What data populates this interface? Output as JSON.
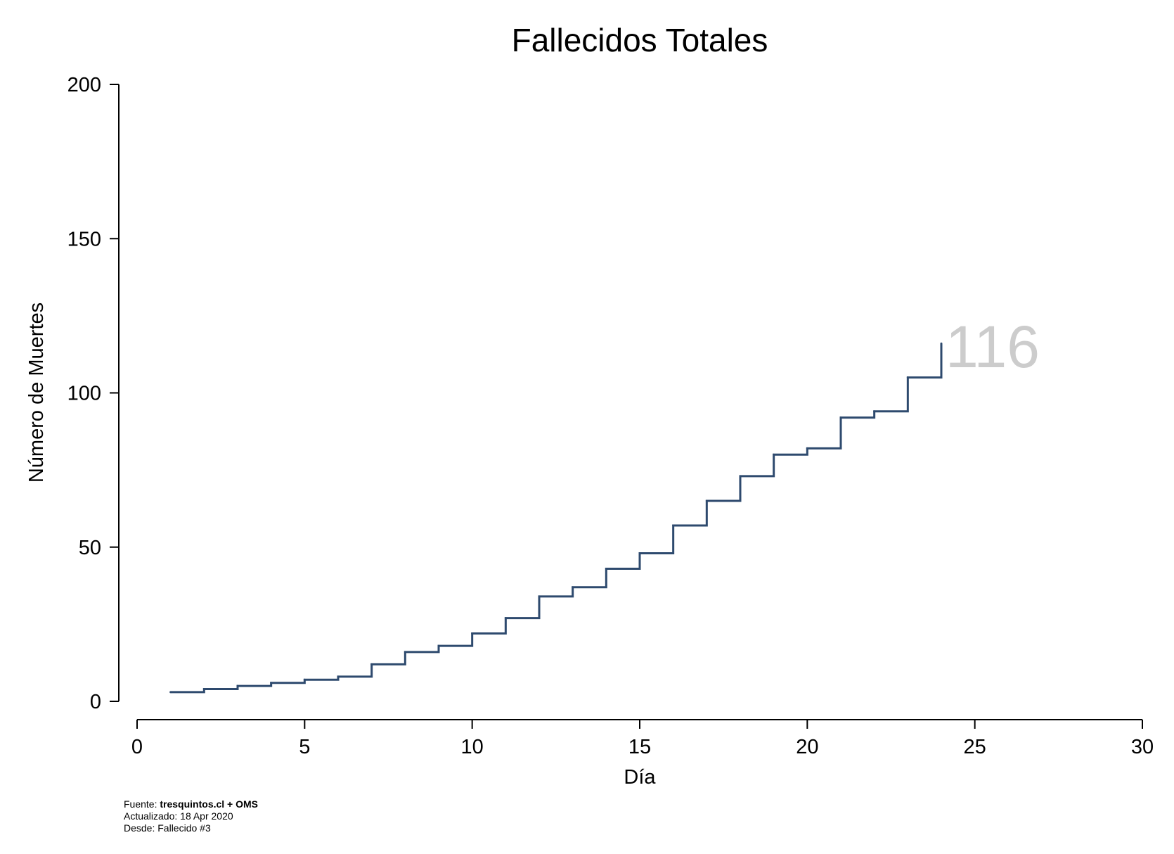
{
  "chart_data": {
    "type": "line",
    "step": true,
    "title": "Fallecidos Totales",
    "xlabel": "Día",
    "ylabel": "Número de Muertes",
    "xlim": [
      0,
      30
    ],
    "ylim": [
      0,
      200
    ],
    "xticks": [
      0,
      5,
      10,
      15,
      20,
      25,
      30
    ],
    "yticks": [
      0,
      50,
      100,
      150,
      200
    ],
    "grid": false,
    "colors": {
      "line": "#2e4a6e",
      "end_label": "#cccccc"
    },
    "series": [
      {
        "x": [
          1,
          2,
          3,
          4,
          5,
          6,
          7,
          8,
          9,
          10,
          11,
          12,
          13,
          14,
          15,
          16,
          17,
          18,
          19,
          20,
          21,
          22,
          23,
          24
        ],
        "values": [
          3,
          4,
          5,
          6,
          7,
          8,
          12,
          16,
          18,
          22,
          27,
          34,
          37,
          43,
          48,
          57,
          65,
          73,
          80,
          82,
          92,
          94,
          105,
          116
        ]
      }
    ],
    "end_label": "116"
  },
  "footer": {
    "source_prefix": "Fuente: ",
    "source_bold": "tresquintos.cl + OMS",
    "updated": "Actualizado: 18 Apr 2020",
    "since": "Desde: Fallecido #3"
  }
}
